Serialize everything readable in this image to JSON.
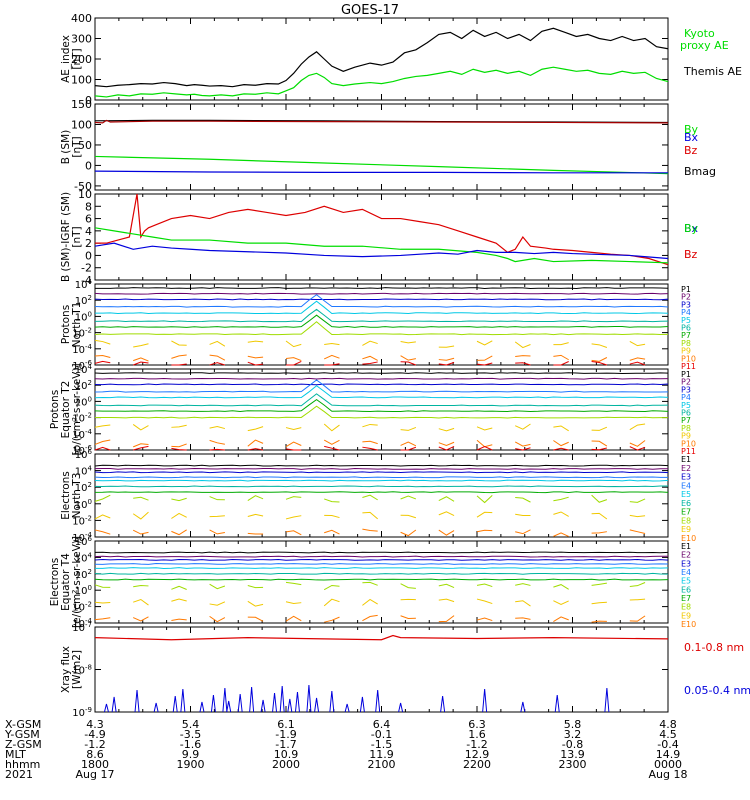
{
  "title": "GOES-17",
  "colors": {
    "black": "#000000",
    "green": "#00dd00",
    "red": "#dd0000",
    "blue": "#0000dd",
    "darkred": "#aa0000",
    "ladder": [
      "#000000",
      "#6a006a",
      "#0000cc",
      "#1f78ff",
      "#00c8e6",
      "#00b4a0",
      "#00aa00",
      "#a0dc00",
      "#f0c800",
      "#ff7a00",
      "#e60000",
      "#a00000"
    ]
  },
  "chart_data": [
    {
      "type": "line",
      "name": "ae",
      "ylabel": "AE_index [nT]",
      "ylim": [
        0,
        400
      ],
      "yticks": [
        "400",
        "300",
        "200",
        "100",
        "0"
      ],
      "ytick_values": [
        400,
        300,
        200,
        100,
        0
      ],
      "legend": [
        "Kyoto proxy AE",
        "Themis AE"
      ],
      "series": [
        {
          "name": "Themis AE",
          "color": "black",
          "x": [
            0,
            3,
            6,
            9,
            12,
            15,
            18,
            21,
            24,
            26,
            28,
            30,
            33,
            36,
            39,
            42,
            45,
            48,
            50,
            52,
            54,
            56,
            58,
            60,
            62,
            65,
            68,
            72,
            75,
            78,
            81,
            84,
            87,
            90,
            93,
            96,
            99,
            102,
            105,
            108,
            111,
            114,
            117,
            120,
            123,
            126,
            129,
            132,
            135,
            138,
            141,
            144,
            147,
            150
          ],
          "y": [
            70,
            65,
            72,
            75,
            80,
            78,
            85,
            80,
            70,
            75,
            72,
            68,
            70,
            65,
            75,
            72,
            80,
            78,
            95,
            130,
            175,
            210,
            235,
            200,
            165,
            140,
            160,
            180,
            170,
            185,
            230,
            245,
            280,
            320,
            330,
            300,
            340,
            310,
            330,
            300,
            320,
            290,
            335,
            350,
            330,
            310,
            320,
            300,
            290,
            310,
            290,
            300,
            260,
            250
          ]
        },
        {
          "name": "Kyoto proxy AE",
          "color": "green",
          "x": [
            0,
            3,
            6,
            9,
            12,
            15,
            18,
            21,
            24,
            26,
            28,
            30,
            33,
            36,
            39,
            42,
            45,
            48,
            50,
            52,
            54,
            56,
            58,
            60,
            62,
            65,
            68,
            72,
            75,
            78,
            81,
            84,
            87,
            90,
            93,
            96,
            99,
            102,
            105,
            108,
            111,
            114,
            117,
            120,
            123,
            126,
            129,
            132,
            135,
            138,
            141,
            144,
            147,
            150
          ],
          "y": [
            20,
            15,
            25,
            20,
            30,
            28,
            35,
            30,
            25,
            28,
            22,
            20,
            25,
            20,
            30,
            28,
            35,
            30,
            45,
            60,
            95,
            120,
            130,
            110,
            80,
            70,
            78,
            85,
            80,
            90,
            105,
            115,
            120,
            130,
            140,
            125,
            150,
            135,
            145,
            130,
            140,
            120,
            150,
            160,
            150,
            140,
            145,
            130,
            125,
            140,
            130,
            135,
            105,
            90
          ]
        }
      ]
    },
    {
      "type": "line",
      "name": "bsm",
      "ylabel": "B (SM) [nT]",
      "ylim": [
        -60,
        150
      ],
      "yticks": [
        "150",
        "100",
        "50",
        "0",
        "-50"
      ],
      "ytick_values": [
        150,
        100,
        50,
        0,
        -50
      ],
      "legend": [
        "Bx",
        "By",
        "Bz",
        "Bmag"
      ],
      "series": [
        {
          "name": "Bmag",
          "color": "black",
          "x": [
            0,
            15,
            30,
            60,
            90,
            120,
            150
          ],
          "y": [
            109,
            110,
            110,
            109,
            107,
            106,
            105
          ]
        },
        {
          "name": "Bz",
          "color": "darkred",
          "x": [
            0,
            2,
            3,
            4,
            15,
            30,
            60,
            90,
            120,
            150
          ],
          "y": [
            105,
            104,
            110,
            106,
            108,
            108,
            107,
            106,
            105,
            104
          ]
        },
        {
          "name": "By",
          "color": "green",
          "x": [
            0,
            30,
            60,
            90,
            120,
            150
          ],
          "y": [
            22,
            15,
            6,
            -3,
            -12,
            -20
          ]
        },
        {
          "name": "Bx",
          "color": "blue",
          "x": [
            0,
            30,
            60,
            90,
            120,
            150
          ],
          "y": [
            -14,
            -16,
            -17,
            -17,
            -18,
            -18
          ]
        }
      ]
    },
    {
      "type": "line",
      "name": "dbsm",
      "ylabel": "B (SM)-IGRF (SM) [nT]",
      "ylim": [
        -4,
        10
      ],
      "yticks": [
        "10",
        "8",
        "6",
        "4",
        "2",
        "0",
        "-2",
        "-4"
      ],
      "ytick_values": [
        10,
        8,
        6,
        4,
        2,
        0,
        -2,
        -4
      ],
      "legend": [
        "Bx",
        "By",
        "Bz"
      ],
      "series": [
        {
          "name": "Bz",
          "color": "red",
          "x": [
            0,
            3,
            6,
            9,
            11,
            12,
            13,
            14,
            16,
            20,
            25,
            30,
            35,
            40,
            45,
            50,
            55,
            60,
            65,
            70,
            75,
            80,
            85,
            90,
            95,
            100,
            105,
            108,
            110,
            112,
            114,
            118,
            120,
            125,
            130,
            135,
            140,
            145,
            150
          ],
          "y": [
            2,
            2,
            2.5,
            3,
            10,
            3,
            4,
            4.5,
            5,
            6,
            6.5,
            6,
            7,
            7.5,
            7,
            6.5,
            7,
            8,
            7,
            7.5,
            6,
            6,
            5.5,
            5,
            4,
            3,
            2,
            0.5,
            1,
            3,
            1.5,
            1.2,
            1,
            0.8,
            0.5,
            0.2,
            0,
            -0.5,
            -1.5
          ]
        },
        {
          "name": "By",
          "color": "green",
          "x": [
            0,
            5,
            10,
            15,
            20,
            30,
            40,
            50,
            60,
            70,
            80,
            90,
            100,
            105,
            108,
            110,
            115,
            120,
            130,
            140,
            150
          ],
          "y": [
            4.5,
            4,
            3.5,
            3,
            2.5,
            2.5,
            2,
            2,
            1.5,
            1.5,
            1,
            1,
            0.5,
            0,
            -0.5,
            -1,
            -0.5,
            -1,
            -0.8,
            -1,
            -1.2
          ]
        },
        {
          "name": "Bx",
          "color": "blue",
          "x": [
            0,
            5,
            10,
            15,
            20,
            25,
            30,
            40,
            50,
            60,
            70,
            80,
            90,
            95,
            100,
            105,
            110,
            115,
            120,
            125,
            130,
            140,
            150
          ],
          "y": [
            1.5,
            2,
            1,
            1.5,
            1.2,
            1,
            0.8,
            0.6,
            0.4,
            0,
            -0.2,
            0,
            0.4,
            0.2,
            0.8,
            0.5,
            0.5,
            0.3,
            0.5,
            0.3,
            0.2,
            0,
            -0.5
          ]
        }
      ]
    },
    {
      "type": "line",
      "name": "p_north",
      "log": true,
      "ylabel": "Protons North T1",
      "ylim": [
        -6,
        4
      ],
      "yticks": [
        "10^4",
        "10^2",
        "10^0",
        "10^-2",
        "10^-4",
        "10^-6"
      ],
      "ytick_values": [
        4,
        2,
        0,
        -2,
        -4,
        -6
      ],
      "legend": [
        "P1",
        "P2",
        "P3",
        "P4",
        "P5",
        "P6",
        "P7",
        "P8",
        "P9",
        "P10",
        "P11"
      ],
      "series_log10_levels": [
        3.5,
        2.8,
        2.1,
        1.2,
        0.4,
        -0.6,
        -1.3,
        -2.2,
        -3.4,
        -5.2,
        -6
      ],
      "spike": {
        "x": 58,
        "height": 1.5
      }
    },
    {
      "type": "line",
      "name": "p_equator",
      "log": true,
      "ylabel": "Protons Equator T2 [p/(cm²-s-sr-keV)]",
      "ylim": [
        -6,
        4
      ],
      "yticks": [
        "10^4",
        "10^2",
        "10^0",
        "10^-2",
        "10^-4",
        "10^-6"
      ],
      "ytick_values": [
        4,
        2,
        0,
        -2,
        -4,
        -6
      ],
      "legend": [
        "P1",
        "P2",
        "P3",
        "P4",
        "P5",
        "P6",
        "P7",
        "P8",
        "P9",
        "P10",
        "P11"
      ],
      "series_log10_levels": [
        3.5,
        2.8,
        2.1,
        1.2,
        0.5,
        -0.5,
        -1.2,
        -2.0,
        -3.2,
        -5.2,
        -6
      ],
      "spike": {
        "x": 58,
        "height": 1.4
      }
    },
    {
      "type": "line",
      "name": "e_north",
      "log": true,
      "ylabel": "Electrons North T3",
      "ylim": [
        -4,
        6
      ],
      "yticks": [
        "10^6",
        "10^4",
        "10^2",
        "10^0",
        "10^-2",
        "10^-4"
      ],
      "ytick_values": [
        6,
        4,
        2,
        0,
        -2,
        -4
      ],
      "legend": [
        "E1",
        "E2",
        "E3",
        "E4",
        "E5",
        "E6",
        "E7",
        "E8",
        "E9",
        "E10"
      ],
      "series_log10_levels": [
        4.6,
        4.2,
        3.8,
        3.2,
        2.8,
        2.1,
        1.4,
        0.6,
        -1.4,
        -3.5
      ]
    },
    {
      "type": "line",
      "name": "e_equator",
      "log": true,
      "ylabel": "Electrons Equator T4 [e/(cm²-s-sr-keV)]",
      "ylim": [
        -4,
        6
      ],
      "yticks": [
        "10^6",
        "10^4",
        "10^2",
        "10^0",
        "10^-2",
        "10^-4"
      ],
      "ytick_values": [
        6,
        4,
        2,
        0,
        -2,
        -4
      ],
      "legend": [
        "E1",
        "E2",
        "E3",
        "E4",
        "E5",
        "E6",
        "E7",
        "E8",
        "E9",
        "E10"
      ],
      "series_log10_levels": [
        4.6,
        4.1,
        3.7,
        3.2,
        2.7,
        2.0,
        1.3,
        0.5,
        -1.5,
        -3.5
      ]
    },
    {
      "type": "line",
      "name": "xray",
      "log": true,
      "ylabel": "Xray flux [W/m2]",
      "ylim": [
        -9,
        -7
      ],
      "yticks": [
        "10^-7",
        "10^-8",
        "10^-9"
      ],
      "ytick_values": [
        -7,
        -8,
        -9
      ],
      "legend": [
        "0.1-0.8 nm",
        "0.05-0.4 nm"
      ],
      "series": [
        {
          "name": "0.1-0.8 nm",
          "color": "red",
          "x": [
            0,
            20,
            40,
            60,
            75,
            78,
            80,
            100,
            120,
            150
          ],
          "y": [
            -7.25,
            -7.3,
            -7.25,
            -7.28,
            -7.3,
            -7.2,
            -7.25,
            -7.27,
            -7.25,
            -7.28
          ]
        }
      ],
      "spikes_05_04": [
        3,
        5,
        11,
        16,
        21,
        23,
        28,
        31,
        34,
        35,
        38,
        41,
        44,
        47,
        49,
        51,
        53,
        56,
        58,
        62,
        66,
        70,
        74,
        80,
        91,
        102,
        112,
        121,
        134
      ]
    }
  ],
  "time_axis": {
    "x_range": [
      0,
      150
    ],
    "tick_x": [
      0,
      25,
      50,
      75,
      100,
      125,
      150
    ],
    "rows": [
      {
        "label": "X-GSM",
        "values": [
          "4.3",
          "5.4",
          "6.1",
          "6.4",
          "6.3",
          "5.8",
          "4.8"
        ]
      },
      {
        "label": "Y-GSM",
        "values": [
          "-4.9",
          "-3.5",
          "-1.9",
          "-0.1",
          "1.6",
          "3.2",
          "4.5"
        ]
      },
      {
        "label": "Z-GSM",
        "values": [
          "-1.2",
          "-1.6",
          "-1.7",
          "-1.5",
          "-1.2",
          "-0.8",
          "-0.4"
        ]
      },
      {
        "label": "MLT",
        "values": [
          "8.6",
          "9.9",
          "10.9",
          "11.9",
          "12.9",
          "13.9",
          "14.9"
        ]
      },
      {
        "label": "hhmm",
        "values": [
          "1800",
          "1900",
          "2000",
          "2100",
          "2200",
          "2300",
          "0000"
        ]
      },
      {
        "label": "2021",
        "values": [
          "Aug 17",
          "",
          "",
          "",
          "",
          "",
          "Aug 18"
        ]
      }
    ]
  }
}
